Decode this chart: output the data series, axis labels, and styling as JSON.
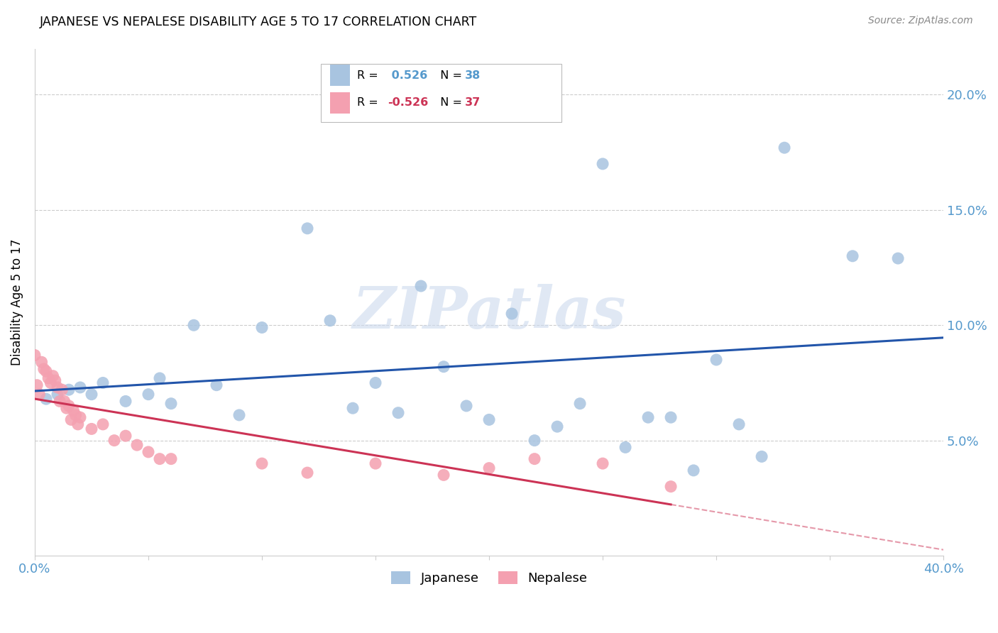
{
  "title": "JAPANESE VS NEPALESE DISABILITY AGE 5 TO 17 CORRELATION CHART",
  "source": "Source: ZipAtlas.com",
  "ylabel": "Disability Age 5 to 17",
  "xlim": [
    0.0,
    0.4
  ],
  "ylim": [
    0.0,
    0.22
  ],
  "watermark": "ZIPatlas",
  "blue_color": "#a8c4e0",
  "pink_color": "#f4a0b0",
  "blue_line_color": "#2255aa",
  "pink_line_color": "#cc3355",
  "japanese_x": [
    0.005,
    0.01,
    0.015,
    0.02,
    0.025,
    0.03,
    0.04,
    0.05,
    0.055,
    0.06,
    0.07,
    0.08,
    0.09,
    0.1,
    0.12,
    0.13,
    0.14,
    0.15,
    0.16,
    0.17,
    0.18,
    0.19,
    0.2,
    0.21,
    0.22,
    0.23,
    0.24,
    0.25,
    0.26,
    0.27,
    0.28,
    0.29,
    0.3,
    0.31,
    0.32,
    0.33,
    0.36,
    0.38
  ],
  "japanese_y": [
    0.068,
    0.07,
    0.072,
    0.073,
    0.07,
    0.075,
    0.067,
    0.07,
    0.077,
    0.066,
    0.1,
    0.074,
    0.061,
    0.099,
    0.142,
    0.102,
    0.064,
    0.075,
    0.062,
    0.117,
    0.082,
    0.065,
    0.059,
    0.105,
    0.05,
    0.056,
    0.066,
    0.17,
    0.047,
    0.06,
    0.06,
    0.037,
    0.085,
    0.057,
    0.043,
    0.177,
    0.13,
    0.129
  ],
  "nepalese_x": [
    0.0,
    0.001,
    0.002,
    0.003,
    0.004,
    0.005,
    0.006,
    0.007,
    0.008,
    0.009,
    0.01,
    0.011,
    0.012,
    0.013,
    0.014,
    0.015,
    0.016,
    0.017,
    0.018,
    0.019,
    0.02,
    0.025,
    0.03,
    0.035,
    0.04,
    0.045,
    0.05,
    0.055,
    0.06,
    0.1,
    0.12,
    0.15,
    0.18,
    0.2,
    0.22,
    0.25,
    0.28
  ],
  "nepalese_y": [
    0.087,
    0.074,
    0.07,
    0.084,
    0.081,
    0.08,
    0.077,
    0.075,
    0.078,
    0.076,
    0.073,
    0.067,
    0.072,
    0.067,
    0.064,
    0.065,
    0.059,
    0.063,
    0.061,
    0.057,
    0.06,
    0.055,
    0.057,
    0.05,
    0.052,
    0.048,
    0.045,
    0.042,
    0.042,
    0.04,
    0.036,
    0.04,
    0.035,
    0.038,
    0.042,
    0.04,
    0.03
  ]
}
